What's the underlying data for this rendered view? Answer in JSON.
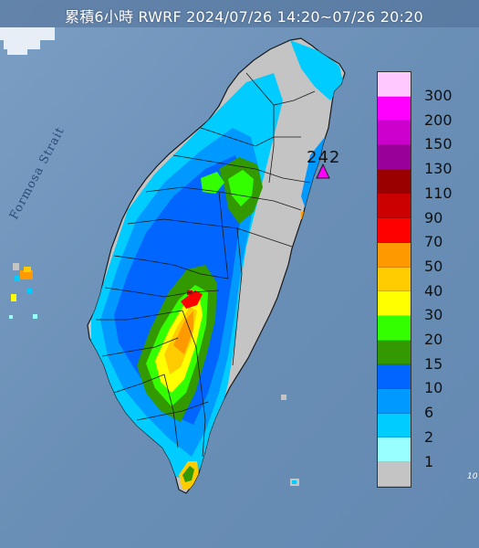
{
  "header": {
    "title": "累積6小時 RWRF 2024/07/26 14:20~07/26 20:20"
  },
  "map": {
    "strait_label": "Formosa Strait",
    "max_label": "242",
    "corner_mark": "10",
    "sea_color": "#6f93b8",
    "land_base_color": "#c4c4c4",
    "border_color": "#1a1a1a"
  },
  "legend": {
    "items": [
      {
        "label": "300",
        "color": "#ffc8ff"
      },
      {
        "label": "200",
        "color": "#ff00ff"
      },
      {
        "label": "150",
        "color": "#cc00cc"
      },
      {
        "label": "130",
        "color": "#990099"
      },
      {
        "label": "110",
        "color": "#990000"
      },
      {
        "label": "90",
        "color": "#cc0000"
      },
      {
        "label": "70",
        "color": "#ff0000"
      },
      {
        "label": "50",
        "color": "#ff9900"
      },
      {
        "label": "40",
        "color": "#ffcc00"
      },
      {
        "label": "30",
        "color": "#ffff00"
      },
      {
        "label": "20",
        "color": "#33ff00"
      },
      {
        "label": "15",
        "color": "#339900"
      },
      {
        "label": "10",
        "color": "#0066ff"
      },
      {
        "label": "6",
        "color": "#0099ff"
      },
      {
        "label": "2",
        "color": "#00ccff"
      },
      {
        "label": "1",
        "color": "#99ffff"
      },
      {
        "label": "",
        "color": "#c4c4c4"
      }
    ]
  }
}
